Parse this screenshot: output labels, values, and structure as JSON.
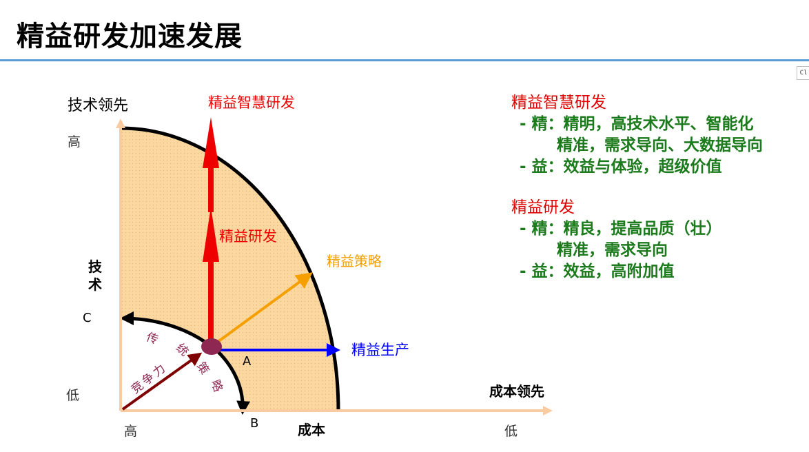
{
  "slide": {
    "title": "精益研发加速发展",
    "corner_tag": "Cl"
  },
  "diagram": {
    "y_axis_title": "技术领先",
    "y_high": "高",
    "y_low": "低",
    "x_axis_title": "成本领先",
    "x_high": "高",
    "x_low": "低",
    "x_center_label": "成本",
    "tech_label": [
      "技",
      "术"
    ],
    "point_a": "A",
    "point_b": "B",
    "point_c": "C",
    "arrow_smart": "精益智慧研发",
    "arrow_lean_rd": "精益研发",
    "arrow_strategy": "精益策略",
    "arrow_production": "精益生产",
    "competitiveness": [
      "竞",
      "争",
      "力"
    ],
    "traditional_strategy": [
      "传",
      "统",
      "策",
      "略"
    ],
    "colors": {
      "fill": "#fbd8a0",
      "red": "#ee0000",
      "orange": "#f5a000",
      "blue": "#0000ff",
      "dark_red": "#7f0000",
      "point": "#8e2752",
      "axis": "#f8cba0",
      "green_text": "#1b7a1b"
    }
  },
  "panel": {
    "smart": {
      "heading": "精益智慧研发",
      "lines": [
        "- 精：精明，高技术水平、智能化",
        "　　 精准，需求导向、大数据导向",
        "- 益：效益与体验，超级价值"
      ]
    },
    "lean": {
      "heading": "精益研发",
      "lines": [
        "- 精：精良，提高品质（壮）",
        "　　 精准，需求导向",
        "- 益：效益，高附加值"
      ]
    }
  }
}
